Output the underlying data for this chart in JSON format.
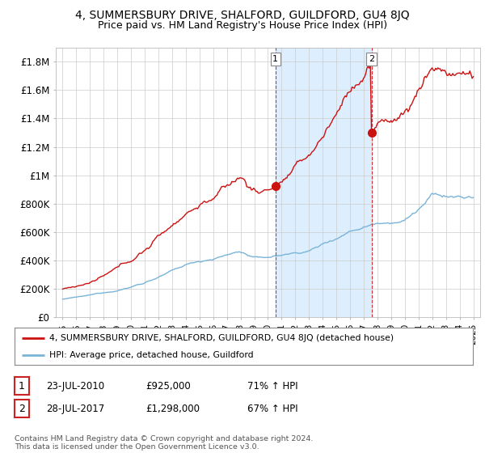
{
  "title": "4, SUMMERSBURY DRIVE, SHALFORD, GUILDFORD, GU4 8JQ",
  "subtitle": "Price paid vs. HM Land Registry's House Price Index (HPI)",
  "ylim": [
    0,
    1900000
  ],
  "yticks": [
    0,
    200000,
    400000,
    600000,
    800000,
    1000000,
    1200000,
    1400000,
    1600000,
    1800000
  ],
  "ytick_labels": [
    "£0",
    "£200K",
    "£400K",
    "£600K",
    "£800K",
    "£1M",
    "£1.2M",
    "£1.4M",
    "£1.6M",
    "£1.8M"
  ],
  "hpi_color": "#7ab4d8",
  "price_color": "#cc1111",
  "vline_color": "#cc1111",
  "shade_color": "#ddeeff",
  "transaction1_x": 2010.55,
  "transaction1_price": 925000,
  "transaction2_x": 2017.57,
  "transaction2_price": 1298000,
  "legend_red_label": "4, SUMMERSBURY DRIVE, SHALFORD, GUILDFORD, GU4 8JQ (detached house)",
  "legend_blue_label": "HPI: Average price, detached house, Guildford",
  "annotation1_date": "23-JUL-2010",
  "annotation1_price": "£925,000",
  "annotation1_hpi": "71% ↑ HPI",
  "annotation2_date": "28-JUL-2017",
  "annotation2_price": "£1,298,000",
  "annotation2_hpi": "67% ↑ HPI",
  "footer": "Contains HM Land Registry data © Crown copyright and database right 2024.\nThis data is licensed under the Open Government Licence v3.0.",
  "bg_color": "#ffffff",
  "grid_color": "#cccccc",
  "title_fontsize": 10,
  "subtitle_fontsize": 9,
  "tick_fontsize": 8.5
}
